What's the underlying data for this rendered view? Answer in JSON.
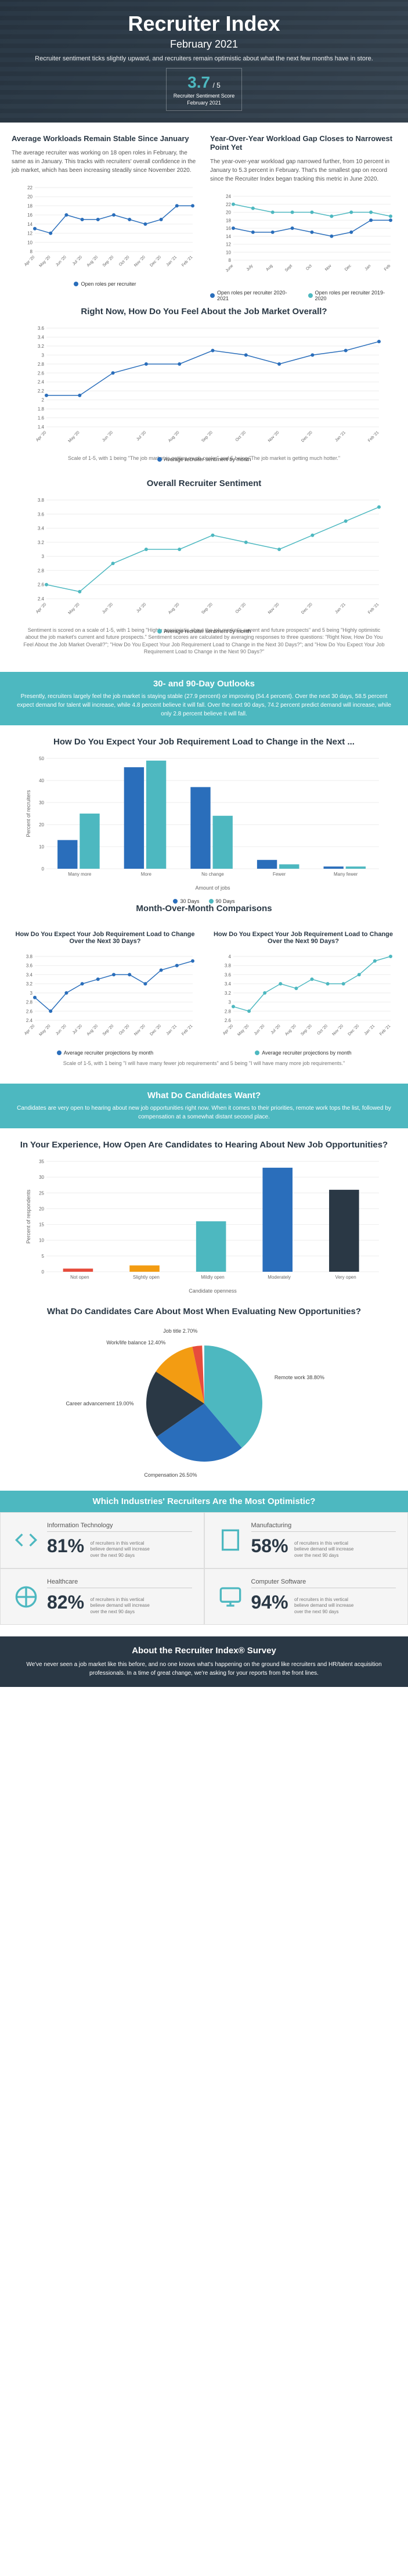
{
  "header": {
    "title": "Recruiter Index",
    "month": "February 2021",
    "subtitle": "Recruiter sentiment ticks slightly upward, and recruiters remain optimistic about what the next few months have in store.",
    "score": "3.7",
    "score_denom": "/ 5",
    "score_label1": "Recruiter Sentiment Score",
    "score_label2": "February 2021"
  },
  "workloads": {
    "left_title": "Average Workloads Remain Stable Since January",
    "left_text": "The average recruiter was working on 18 open roles in February, the same as in January. This tracks with recruiters' overall confidence in the job market, which has been increasing steadily since November 2020.",
    "right_title": "Year-Over-Year Workload Gap Closes to Narrowest Point Yet",
    "right_text": "The year-over-year workload gap narrowed further, from 10 percent in January to 5.3 percent in February. That's the smallest gap on record since the Recruiter Index began tracking this metric in June 2020.",
    "left_chart": {
      "months": [
        "Apr '20",
        "May '20",
        "Jun '20",
        "Jul '20",
        "Aug '20",
        "Sep '20",
        "Oct '20",
        "Nov '20",
        "Dec '20",
        "Jan '21",
        "Feb '21"
      ],
      "values": [
        13,
        12,
        16,
        15,
        15,
        16,
        15,
        14,
        15,
        18,
        18
      ],
      "ylim": [
        8,
        22
      ],
      "ytick_step": 2,
      "color": "#2a6ebb",
      "legend": "Open roles per recruiter"
    },
    "right_chart": {
      "months": [
        "June",
        "July",
        "Aug",
        "Sept",
        "Oct",
        "Nov",
        "Dec",
        "Jan",
        "Feb"
      ],
      "series1": {
        "label": "Open roles per recruiter 2020-2021",
        "values": [
          16,
          15,
          15,
          16,
          15,
          14,
          15,
          18,
          18
        ],
        "color": "#2a6ebb"
      },
      "series2": {
        "label": "Open roles per recruiter 2019-2020",
        "values": [
          22,
          21,
          20,
          20,
          20,
          19,
          20,
          20,
          19
        ],
        "color": "#4db8c0"
      },
      "ylim": [
        8,
        24
      ],
      "ytick_step": 2
    }
  },
  "feel_overall": {
    "title": "Right Now, How Do You Feel About the Job Market Overall?",
    "months": [
      "Apr '20",
      "May '20",
      "Jun '20",
      "Jul '20",
      "Aug '20",
      "Sep '20",
      "Oct '20",
      "Nov '20",
      "Dec '20",
      "Jan '21",
      "Feb '21"
    ],
    "values": [
      2.1,
      2.1,
      2.6,
      2.8,
      2.8,
      3.1,
      3.0,
      2.8,
      3.0,
      3.1,
      3.3
    ],
    "ylim": [
      1.4,
      3.6
    ],
    "ytick_step": 0.2,
    "color": "#2a6ebb",
    "legend": "Average recruiter sentiment by month",
    "footnote": "Scale of 1-5, with 1 being \"The job market is getting much cooler\" and 5 being \"The job market is getting much hotter.\""
  },
  "overall_sentiment": {
    "title": "Overall Recruiter Sentiment",
    "months": [
      "Apr '20",
      "May '20",
      "Jun '20",
      "Jul '20",
      "Aug '20",
      "Sep '20",
      "Oct '20",
      "Nov '20",
      "Dec '20",
      "Jan '21",
      "Feb '21"
    ],
    "values": [
      2.6,
      2.5,
      2.9,
      3.1,
      3.1,
      3.3,
      3.2,
      3.1,
      3.3,
      3.5,
      3.7
    ],
    "ylim": [
      2.4,
      3.8
    ],
    "ytick_step": 0.2,
    "color": "#4db8c0",
    "legend": "Average recruiter sentiment by month",
    "footnote": "Sentiment is scored on a scale of 1-5, with 1 being \"Highly pessimistic about the job market's current and future prospects\" and 5 being \"Highly optimistic about the job market's current and future prospects.\" Sentiment scores are calculated by averaging responses to three questions: \"Right Now, How Do You Feel About the Job Market Overall?\"; \"How Do You Expect Your Job Requirement Load to Change in the Next 30 Days?\"; and \"How Do You Expect Your Job Requirement Load to Change in the Next 90 Days?\""
  },
  "outlooks_banner": {
    "title": "30- and 90-Day Outlooks",
    "text": "Presently, recruiters largely feel the job market is staying stable (27.9 percent) or improving (54.4 percent). Over the next 30 days, 58.5 percent expect demand for talent will increase, while 4.8 percent believe it will fall. Over the next 90 days, 74.2 percent predict demand will increase, while only 2.8 percent believe it will fall."
  },
  "req_load": {
    "title": "How Do You Expect Your Job Requirement Load to Change in the Next ...",
    "categories": [
      "Many more",
      "More",
      "No change",
      "Fewer",
      "Many fewer"
    ],
    "series30": {
      "label": "30 Days",
      "values": [
        13,
        46,
        37,
        4,
        1
      ],
      "color": "#2a6ebb"
    },
    "series90": {
      "label": "90 Days",
      "values": [
        25,
        49,
        24,
        2,
        1
      ],
      "color": "#4db8c0"
    },
    "ylabel": "Percent of recruiters",
    "xlabel": "Amount of jobs",
    "ylim": [
      0,
      50
    ],
    "ytick_step": 10
  },
  "mom_title": "Month-Over-Month Comparisons",
  "mom30": {
    "title": "How Do You Expect Your Job Requirement Load to Change Over the Next 30 Days?",
    "months": [
      "Apr '20",
      "May '20",
      "Jun '20",
      "Jul '20",
      "Aug '20",
      "Sep '20",
      "Oct '20",
      "Nov '20",
      "Dec '20",
      "Jan '21",
      "Feb '21"
    ],
    "values": [
      2.9,
      2.6,
      3.0,
      3.2,
      3.3,
      3.4,
      3.4,
      3.2,
      3.5,
      3.6,
      3.7
    ],
    "ylim": [
      2.4,
      3.8
    ],
    "ytick_step": 0.2,
    "color": "#2a6ebb",
    "legend": "Average recruiter projections by month"
  },
  "mom90": {
    "title": "How Do You Expect Your Job Requirement Load to Change Over the Next 90 Days?",
    "months": [
      "Apr '20",
      "May '20",
      "Jun '20",
      "Jul '20",
      "Aug '20",
      "Sep '20",
      "Oct '20",
      "Nov '20",
      "Dec '20",
      "Jan '21",
      "Feb '21"
    ],
    "values": [
      2.9,
      2.8,
      3.2,
      3.4,
      3.3,
      3.5,
      3.4,
      3.4,
      3.6,
      3.9,
      4.0
    ],
    "ylim": [
      2.6,
      4.0
    ],
    "ytick_step": 0.2,
    "color": "#4db8c0",
    "legend": "Average recruiter projections by month"
  },
  "mom_footnote": "Scale of 1-5, with 1 being \"I will have many fewer job requirements\" and 5 being \"I will have many more job requirements.\"",
  "candidates_banner": {
    "title": "What Do Candidates Want?",
    "text": "Candidates are very open to hearing about new job opportunities right now. When it comes to their priorities, remote work tops the list, followed by compensation at a somewhat distant second place."
  },
  "openness": {
    "title": "In Your Experience, How Open Are Candidates to Hearing About New Job Opportunities?",
    "categories": [
      "Not open",
      "Slightly open",
      "Mildly open",
      "Moderately",
      "Very open"
    ],
    "values": [
      1,
      2,
      16,
      33,
      26
    ],
    "colors": [
      "#e74c3c",
      "#f39c12",
      "#4db8c0",
      "#2a6ebb",
      "#2a3845"
    ],
    "ylabel": "Percent of respondents",
    "xlabel": "Candidate openness",
    "ylim": [
      0,
      35
    ],
    "ytick_step": 5
  },
  "pie": {
    "title": "What Do Candidates Care About Most When Evaluating New Opportunities?",
    "slices": [
      {
        "label": "Remote work 38.80%",
        "value": 38.8,
        "color": "#4db8c0"
      },
      {
        "label": "Compensation 26.50%",
        "value": 26.5,
        "color": "#2a6ebb"
      },
      {
        "label": "Career advancement 19.00%",
        "value": 19.0,
        "color": "#2a3845"
      },
      {
        "label": "Work/life balance 12.40%",
        "value": 12.4,
        "color": "#f39c12"
      },
      {
        "label": "Job title 2.70%",
        "value": 2.7,
        "color": "#e74c3c"
      }
    ]
  },
  "industries_title": "Which Industries' Recruiters Are the Most Optimistic?",
  "industries": [
    {
      "name": "Information Technology",
      "pct": "81%",
      "desc": "of recruiters in this vertical believe demand will increase over the next 90 days",
      "icon": "code"
    },
    {
      "name": "Manufacturing",
      "pct": "58%",
      "desc": "of recruiters in this vertical believe demand will increase over the next 90 days",
      "icon": "building"
    },
    {
      "name": "Healthcare",
      "pct": "82%",
      "desc": "of recruiters in this vertical believe demand will increase over the next 90 days",
      "icon": "medical"
    },
    {
      "name": "Computer Software",
      "pct": "94%",
      "desc": "of recruiters in this vertical believe demand will increase over the next 90 days",
      "icon": "monitor"
    }
  ],
  "about": {
    "title": "About the Recruiter Index® Survey",
    "text": "We've never seen a job market like this before, and no one knows what's happening on the ground like recruiters and HR/talent acquisition professionals. In a time of great change, we're asking for your reports from the front lines."
  }
}
